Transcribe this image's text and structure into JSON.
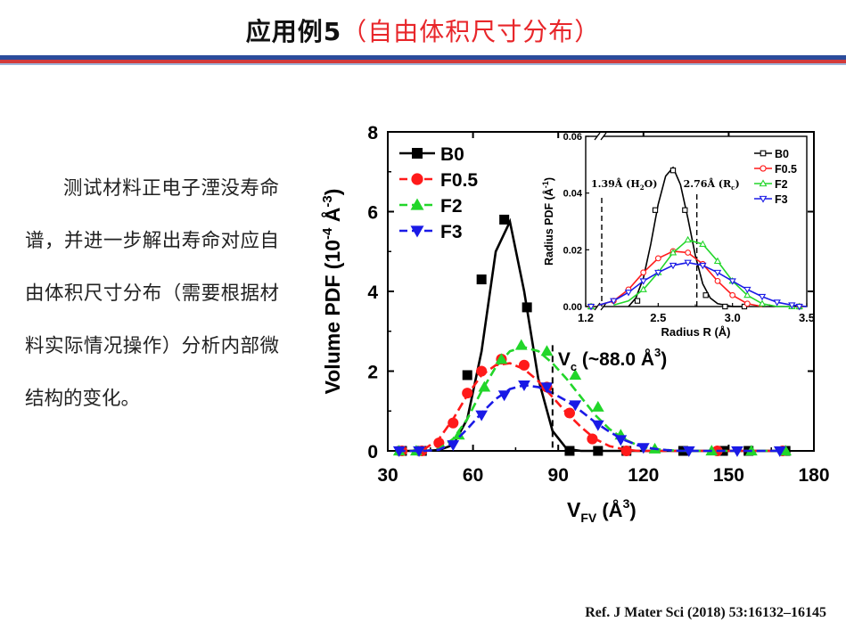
{
  "slide": {
    "title_prefix": "应用例5",
    "title_open": "（",
    "title_accent": "自由体积尺寸分布",
    "title_close": "）",
    "description": "测试材料正电子湮没寿命谱，并进一步解出寿命对应自由体积尺寸分布（需要根据材料实际情况操作）分析内部微结构的变化。",
    "reference": "Ref. J Mater Sci (2018) 53:16132–16145"
  },
  "colors": {
    "B0": "#000000",
    "F0.5": "#ff1a1a",
    "F2": "#22d62a",
    "F3": "#1a1ae6",
    "title_accent": "#e8262a"
  },
  "chart_data": [
    {
      "type": "line",
      "title": "",
      "ylabel_main": "Volume PDF",
      "ylabel_unit": "(10",
      "ylabel_exp": "-4",
      "ylabel_tail": "Å",
      "ylabel_exp2": "-3",
      "ylabel_close": ")",
      "xlabel_main": "V",
      "xlabel_sub": "FV",
      "xlabel_unit": "(Å",
      "xlabel_exp": "3",
      "xlabel_close": ")",
      "xlim": [
        30,
        180
      ],
      "ylim": [
        0,
        8
      ],
      "xticks": [
        30,
        60,
        90,
        120,
        150,
        180
      ],
      "yticks": [
        0,
        2,
        4,
        6,
        8
      ],
      "grid": false,
      "legend_position": "top-left",
      "annotation": {
        "x": 88,
        "label_main": "V",
        "label_sub": "c",
        "label_rest": "(~88.0 Å",
        "label_exp": "3",
        "label_close": ")"
      },
      "series": [
        {
          "name": "B0",
          "marker": "square",
          "dash": "solid",
          "x": [
            33,
            38,
            43,
            48,
            53,
            58,
            63,
            68,
            73,
            78,
            83,
            88,
            93,
            98,
            103,
            108,
            113,
            118,
            123,
            128,
            133,
            138,
            143,
            148,
            153,
            158,
            163,
            168
          ],
          "y": [
            0,
            0,
            0,
            0.02,
            0.15,
            0.8,
            2.5,
            5.0,
            5.75,
            4.0,
            1.8,
            0.5,
            0.05,
            0,
            0,
            0,
            0,
            0,
            0,
            0,
            0,
            0,
            0,
            0,
            0,
            0,
            0,
            0
          ],
          "mx": [
            35,
            42,
            58,
            63,
            71,
            79,
            94,
            104,
            114,
            134,
            148,
            157,
            170
          ],
          "my": [
            0,
            0,
            1.9,
            4.3,
            5.8,
            3.6,
            0,
            0,
            0,
            0,
            0,
            0,
            0
          ]
        },
        {
          "name": "F0.5",
          "marker": "circle",
          "dash": "dash",
          "x": [
            33,
            38,
            43,
            48,
            53,
            58,
            63,
            68,
            73,
            78,
            83,
            88,
            93,
            98,
            103,
            108,
            113,
            118,
            123,
            128,
            133,
            138,
            143,
            148,
            153,
            158,
            163,
            168
          ],
          "y": [
            0,
            0,
            0.05,
            0.3,
            0.8,
            1.4,
            1.9,
            2.15,
            2.2,
            2.05,
            1.75,
            1.35,
            0.95,
            0.6,
            0.3,
            0.12,
            0.04,
            0,
            0,
            0,
            0,
            0,
            0,
            0,
            0,
            0,
            0,
            0
          ],
          "mx": [
            35,
            42,
            48,
            53,
            58,
            63,
            70,
            78,
            86,
            94,
            102,
            114,
            146,
            169
          ],
          "my": [
            0,
            0,
            0.2,
            0.7,
            1.45,
            2.0,
            2.3,
            2.15,
            1.6,
            0.95,
            0.3,
            0,
            0,
            0
          ]
        },
        {
          "name": "F2",
          "marker": "triangle-up",
          "dash": "dash",
          "x": [
            33,
            38,
            43,
            48,
            53,
            58,
            63,
            68,
            73,
            78,
            83,
            88,
            93,
            98,
            103,
            108,
            113,
            118,
            123,
            128,
            133,
            138,
            143,
            148,
            153,
            158,
            163,
            168
          ],
          "y": [
            0,
            0,
            0,
            0.05,
            0.3,
            0.8,
            1.5,
            2.1,
            2.5,
            2.6,
            2.5,
            2.2,
            1.8,
            1.35,
            0.9,
            0.55,
            0.3,
            0.14,
            0.05,
            0.02,
            0,
            0,
            0,
            0,
            0,
            0,
            0,
            0
          ],
          "mx": [
            34,
            40,
            55,
            64,
            70,
            77,
            86,
            96,
            104,
            112,
            124,
            144,
            158,
            170
          ],
          "my": [
            0,
            0,
            0.4,
            1.6,
            2.3,
            2.65,
            2.5,
            1.9,
            1.1,
            0.4,
            0.05,
            0,
            0,
            0
          ]
        },
        {
          "name": "F3",
          "marker": "triangle-down",
          "dash": "dash",
          "x": [
            33,
            38,
            43,
            48,
            53,
            58,
            63,
            68,
            73,
            78,
            83,
            88,
            93,
            98,
            103,
            108,
            113,
            118,
            123,
            128,
            133,
            138,
            143,
            148,
            153,
            158,
            163,
            168
          ],
          "y": [
            0,
            0,
            0,
            0.03,
            0.2,
            0.55,
            0.95,
            1.3,
            1.55,
            1.65,
            1.6,
            1.45,
            1.25,
            1.0,
            0.72,
            0.48,
            0.28,
            0.14,
            0.06,
            0.02,
            0,
            0,
            0,
            0,
            0,
            0,
            0,
            0
          ],
          "mx": [
            34,
            41,
            53,
            63,
            71,
            78,
            86,
            96,
            104,
            112,
            120,
            136,
            153,
            168
          ],
          "my": [
            0,
            0,
            0.15,
            0.9,
            1.4,
            1.65,
            1.6,
            1.15,
            0.65,
            0.28,
            0.08,
            0,
            0,
            0
          ]
        }
      ]
    },
    {
      "type": "line",
      "title": "",
      "ylabel_main": "Radius PDF (Å",
      "ylabel_exp": "-1",
      "ylabel_close": ")",
      "xlabel": "Radius R (Å)",
      "xlim": [
        1.2,
        3.5
      ],
      "ylim": [
        0,
        0.06
      ],
      "xticks": [
        1.2,
        2.5,
        3.0,
        3.5
      ],
      "xtick_labels": [
        "1.2",
        "2.5",
        "3.0",
        "3.5"
      ],
      "yticks": [
        0.0,
        0.02,
        0.04,
        0.06
      ],
      "ytick_labels": [
        "0.00",
        "0.02",
        "0.04",
        "0.06"
      ],
      "axis_break": true,
      "grid": false,
      "legend_position": "top-right",
      "annotations": [
        {
          "x": 1.39,
          "label_pre": "1.39Å (H",
          "label_sub": "2",
          "label_post": "O)"
        },
        {
          "x": 2.76,
          "label_pre": "2.76Å (R",
          "label_sub": "c",
          "label_post": ")"
        }
      ],
      "series": [
        {
          "name": "B0",
          "marker": "square-open",
          "dash": "solid",
          "x": [
            2.3,
            2.35,
            2.4,
            2.45,
            2.5,
            2.55,
            2.6,
            2.65,
            2.7,
            2.75,
            2.8,
            2.85,
            2.9,
            3.0,
            3.1
          ],
          "y": [
            0,
            0.003,
            0.01,
            0.022,
            0.036,
            0.046,
            0.049,
            0.043,
            0.031,
            0.018,
            0.008,
            0.003,
            0.001,
            0,
            0
          ],
          "mx": [
            2.36,
            2.48,
            2.6,
            2.68,
            2.82,
            2.95,
            3.08
          ],
          "my": [
            0.002,
            0.034,
            0.048,
            0.034,
            0.004,
            0,
            0
          ]
        },
        {
          "name": "F0.5",
          "marker": "circle-open",
          "dash": "solid",
          "x": [
            2.1,
            2.2,
            2.3,
            2.4,
            2.5,
            2.6,
            2.7,
            2.8,
            2.9,
            3.0,
            3.1,
            3.2
          ],
          "y": [
            0.0005,
            0.002,
            0.006,
            0.012,
            0.017,
            0.0195,
            0.019,
            0.015,
            0.009,
            0.004,
            0.001,
            0
          ],
          "mx": [
            2.2,
            2.3,
            2.4,
            2.5,
            2.6,
            2.7,
            2.8,
            2.9,
            3.0,
            3.1
          ],
          "my": [
            0.002,
            0.006,
            0.012,
            0.017,
            0.0195,
            0.019,
            0.015,
            0.009,
            0.004,
            0.001
          ]
        },
        {
          "name": "F2",
          "marker": "triangle-up-open",
          "dash": "solid",
          "x": [
            2.2,
            2.3,
            2.4,
            2.5,
            2.6,
            2.7,
            2.8,
            2.9,
            3.0,
            3.1,
            3.2,
            3.3,
            3.4
          ],
          "y": [
            0.0005,
            0.002,
            0.006,
            0.012,
            0.019,
            0.0235,
            0.022,
            0.016,
            0.009,
            0.004,
            0.001,
            0,
            0
          ],
          "mx": [
            2.4,
            2.5,
            2.6,
            2.7,
            2.8,
            2.9,
            3.0,
            3.1,
            3.2,
            3.4
          ],
          "my": [
            0.006,
            0.012,
            0.019,
            0.0235,
            0.022,
            0.016,
            0.009,
            0.004,
            0.001,
            0
          ]
        },
        {
          "name": "F3",
          "marker": "triangle-down-open",
          "dash": "solid",
          "x": [
            2.1,
            2.2,
            2.3,
            2.4,
            2.5,
            2.6,
            2.7,
            2.8,
            2.9,
            3.0,
            3.1,
            3.2,
            3.3,
            3.4,
            3.5
          ],
          "y": [
            0.0005,
            0.002,
            0.005,
            0.009,
            0.012,
            0.0145,
            0.0155,
            0.0145,
            0.012,
            0.009,
            0.006,
            0.0035,
            0.0015,
            0.0005,
            0
          ],
          "mx": [
            2.2,
            2.3,
            2.4,
            2.5,
            2.6,
            2.7,
            2.8,
            2.9,
            3.0,
            3.1,
            3.2,
            3.3,
            3.4
          ],
          "my": [
            0.002,
            0.005,
            0.009,
            0.012,
            0.0145,
            0.0155,
            0.0145,
            0.012,
            0.009,
            0.006,
            0.0035,
            0.0015,
            0.0005
          ]
        }
      ]
    }
  ]
}
